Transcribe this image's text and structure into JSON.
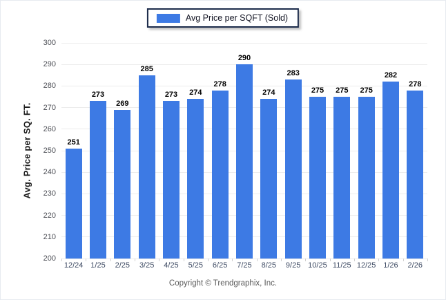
{
  "chart_data": {
    "type": "bar",
    "title": "",
    "legend": "Avg Price per SQFT (Sold)",
    "ylabel": "Avg. Price per SQ. FT.",
    "categories": [
      "12/24",
      "1/25",
      "2/25",
      "3/25",
      "4/25",
      "5/25",
      "6/25",
      "7/25",
      "8/25",
      "9/25",
      "10/25",
      "11/25",
      "12/25",
      "1/26",
      "2/26"
    ],
    "values": [
      251,
      273,
      269,
      285,
      273,
      274,
      278,
      290,
      274,
      283,
      275,
      275,
      275,
      282,
      278
    ],
    "ylim": [
      200,
      300
    ],
    "ytick_step": 10,
    "grid": "horizontal",
    "legend_position": "top-center",
    "bar_color": "#3d7ae4"
  },
  "footer": {
    "text": "Copyright © Trendgraphix, Inc."
  }
}
